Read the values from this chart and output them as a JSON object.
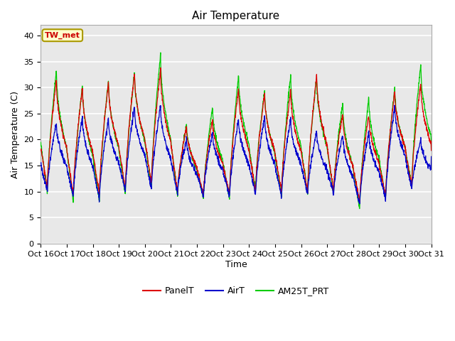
{
  "title": "Air Temperature",
  "xlabel": "Time",
  "ylabel": "Air Temperature (C)",
  "ylim": [
    0,
    42
  ],
  "yticks": [
    0,
    5,
    10,
    15,
    20,
    25,
    30,
    35,
    40
  ],
  "xtick_labels": [
    "Oct 16",
    "Oct 17",
    "Oct 18",
    "Oct 19",
    "Oct 20",
    "Oct 21",
    "Oct 22",
    "Oct 23",
    "Oct 24",
    "Oct 25",
    "Oct 26",
    "Oct 27",
    "Oct 28",
    "Oct 29",
    "Oct 30",
    "Oct 31"
  ],
  "annotation_text": "TW_met",
  "annotation_bg": "#ffffcc",
  "annotation_border": "#aa9900",
  "annotation_text_color": "#cc0000",
  "legend_labels": [
    "PanelT",
    "AirT",
    "AM25T_PRT"
  ],
  "line_colors": [
    "#dd0000",
    "#0000cc",
    "#00cc00"
  ],
  "axes_bg_color": "#e8e8e8",
  "fig_bg_color": "#ffffff",
  "grid_color": "#ffffff",
  "title_fontsize": 11,
  "label_fontsize": 9,
  "tick_fontsize": 8,
  "day_peaks_green": [
    33.5,
    30.5,
    31.5,
    33.0,
    36.5,
    23.0,
    26.5,
    32.5,
    29.5,
    32.5,
    32.0,
    27.0,
    28.0,
    30.0,
    34.5
  ],
  "day_peaks_red": [
    31.5,
    30.0,
    31.0,
    33.0,
    33.5,
    22.5,
    24.0,
    30.0,
    29.0,
    29.5,
    32.5,
    25.0,
    25.0,
    29.5,
    31.0
  ],
  "day_peaks_blue": [
    23.5,
    24.5,
    24.0,
    26.5,
    26.5,
    20.0,
    21.5,
    24.0,
    24.5,
    24.0,
    21.5,
    21.0,
    21.5,
    26.5,
    20.0
  ],
  "day_mins_green": [
    10.0,
    8.0,
    8.0,
    9.5,
    11.0,
    9.0,
    8.5,
    8.5,
    10.0,
    9.0,
    9.5,
    9.5,
    6.5,
    8.5,
    11.0
  ],
  "day_mins_red": [
    10.5,
    9.5,
    9.5,
    10.5,
    11.5,
    10.0,
    9.5,
    9.5,
    10.0,
    10.0,
    10.0,
    10.0,
    8.0,
    9.0,
    11.0
  ],
  "day_mins_blue": [
    10.0,
    9.0,
    8.5,
    10.0,
    10.5,
    9.5,
    9.0,
    9.0,
    9.5,
    9.0,
    9.5,
    9.5,
    7.5,
    8.5,
    10.5
  ]
}
